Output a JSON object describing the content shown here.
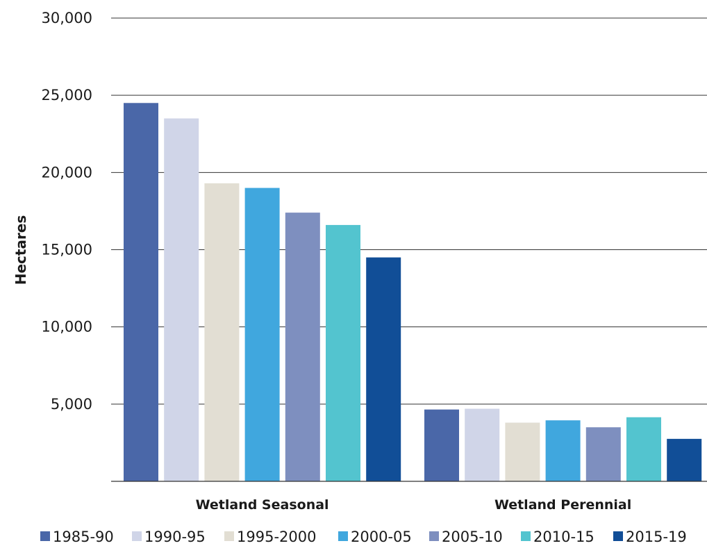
{
  "chart_data": {
    "type": "bar",
    "title": "",
    "xlabel": "",
    "ylabel": "Hectares",
    "ylim": [
      0,
      30000
    ],
    "yticks": [
      5000,
      10000,
      15000,
      20000,
      25000,
      30000
    ],
    "ytick_labels": [
      "5,000",
      "10,000",
      "15,000",
      "20,000",
      "25,000",
      "30,000"
    ],
    "grid": true,
    "legend_position": "bottom",
    "categories": [
      "Wetland Seasonal",
      "Wetland Perennial"
    ],
    "series": [
      {
        "name": "1985-90",
        "color": "#4a67a8",
        "values": [
          24500,
          4650
        ]
      },
      {
        "name": "1990-95",
        "color": "#d0d5e8",
        "values": [
          23500,
          4700
        ]
      },
      {
        "name": "1995-2000",
        "color": "#e2ded3",
        "values": [
          19300,
          3800
        ]
      },
      {
        "name": "2000-05",
        "color": "#40a7de",
        "values": [
          19000,
          3950
        ]
      },
      {
        "name": "2005-10",
        "color": "#7e8fbf",
        "values": [
          17400,
          3500
        ]
      },
      {
        "name": "2010-15",
        "color": "#53c4cf",
        "values": [
          16600,
          4150
        ]
      },
      {
        "name": "2015-19",
        "color": "#114e97",
        "values": [
          14500,
          2750
        ]
      }
    ]
  }
}
